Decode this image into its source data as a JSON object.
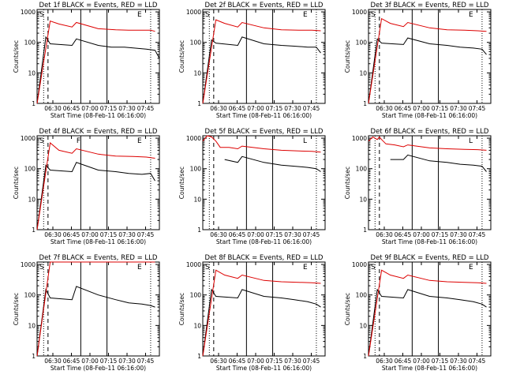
{
  "colors": {
    "events": "#000000",
    "lld": "#dd0000",
    "axis": "#000000",
    "background": "#ffffff"
  },
  "chart_data": [
    {
      "type": "line",
      "title": "Det 1f BLACK = Events, RED = LLD",
      "xlabel": "Start Time (08-Feb-11 06:16:00)",
      "ylabel": "Counts/sec",
      "yscale": "log",
      "ylim": [
        1,
        1200
      ],
      "x_ticks": [
        "06:30",
        "06:45",
        "07:00",
        "07:15",
        "07:30",
        "07:45"
      ],
      "y_ticks": [
        "1",
        "10",
        "100",
        "1000"
      ],
      "markers": [
        "S",
        "E"
      ],
      "series": [
        {
          "name": "Events",
          "values": [
            [
              6.0,
              1
            ],
            [
              6.02,
              150
            ],
            [
              6.03,
              90
            ],
            [
              6.08,
              80
            ],
            [
              6.09,
              130
            ],
            [
              6.14,
              80
            ],
            [
              6.17,
              70
            ],
            [
              6.2,
              70
            ],
            [
              6.25,
              60
            ],
            [
              6.27,
              55
            ],
            [
              6.28,
              30
            ]
          ]
        },
        {
          "name": "LLD",
          "values": [
            [
              6.0,
              1
            ],
            [
              6.03,
              500
            ],
            [
              6.05,
              400
            ],
            [
              6.08,
              320
            ],
            [
              6.09,
              450
            ],
            [
              6.14,
              280
            ],
            [
              6.18,
              260
            ],
            [
              6.21,
              250
            ],
            [
              6.24,
              250
            ],
            [
              6.26,
              250
            ],
            [
              6.27,
              230
            ]
          ]
        }
      ]
    },
    {
      "type": "line",
      "title": "Det 2f BLACK = Events, RED = LLD",
      "xlabel": "Start Time (08-Feb-11 06:16:00)",
      "ylabel": "Counts/sec",
      "yscale": "log",
      "ylim": [
        1,
        1200
      ],
      "x_ticks": [
        "06:30",
        "06:45",
        "07:00",
        "07:15",
        "07:30",
        "07:45"
      ],
      "y_ticks": [
        "1",
        "10",
        "100",
        "1000"
      ],
      "markers": [
        "S",
        "E"
      ],
      "series": [
        {
          "name": "Events",
          "values": [
            [
              6.0,
              1
            ],
            [
              6.02,
              120
            ],
            [
              6.03,
              95
            ],
            [
              6.08,
              80
            ],
            [
              6.09,
              150
            ],
            [
              6.14,
              90
            ],
            [
              6.18,
              80
            ],
            [
              6.21,
              75
            ],
            [
              6.24,
              70
            ],
            [
              6.26,
              70
            ],
            [
              6.27,
              45
            ]
          ]
        },
        {
          "name": "LLD",
          "values": [
            [
              6.0,
              1
            ],
            [
              6.03,
              550
            ],
            [
              6.05,
              420
            ],
            [
              6.08,
              320
            ],
            [
              6.09,
              450
            ],
            [
              6.14,
              300
            ],
            [
              6.18,
              260
            ],
            [
              6.22,
              250
            ],
            [
              6.25,
              250
            ],
            [
              6.27,
              240
            ]
          ]
        }
      ]
    },
    {
      "type": "line",
      "title": "Det 3f BLACK = Events, RED = LLD",
      "xlabel": "Start Time (08-Feb-11 06:16:00)",
      "ylabel": "Counts/sec",
      "yscale": "log",
      "ylim": [
        1,
        1200
      ],
      "x_ticks": [
        "06:30",
        "06:45",
        "07:00",
        "07:15",
        "07:30",
        "07:45"
      ],
      "y_ticks": [
        "1",
        "10",
        "100",
        "1000"
      ],
      "markers": [
        "S",
        "E"
      ],
      "series": [
        {
          "name": "Events",
          "values": [
            [
              6.0,
              1
            ],
            [
              6.02,
              130
            ],
            [
              6.03,
              95
            ],
            [
              6.08,
              85
            ],
            [
              6.09,
              140
            ],
            [
              6.14,
              90
            ],
            [
              6.18,
              80
            ],
            [
              6.21,
              70
            ],
            [
              6.24,
              65
            ],
            [
              6.26,
              60
            ],
            [
              6.27,
              40
            ]
          ]
        },
        {
          "name": "LLD",
          "values": [
            [
              6.0,
              1
            ],
            [
              6.03,
              600
            ],
            [
              6.05,
              420
            ],
            [
              6.08,
              330
            ],
            [
              6.09,
              450
            ],
            [
              6.14,
              300
            ],
            [
              6.18,
              260
            ],
            [
              6.22,
              250
            ],
            [
              6.25,
              240
            ],
            [
              6.27,
              230
            ]
          ]
        }
      ]
    },
    {
      "type": "line",
      "title": "Det 4f BLACK = Events, RED = LLD",
      "xlabel": "Start Time (08-Feb-11 06:16:00)",
      "ylabel": "Counts/sec",
      "yscale": "log",
      "ylim": [
        1,
        1200
      ],
      "x_ticks": [
        "06:30",
        "06:45",
        "07:00",
        "07:15",
        "07:30",
        "07:45"
      ],
      "y_ticks": [
        "1",
        "10",
        "100",
        "1000"
      ],
      "markers": [
        "S",
        "F",
        "E"
      ],
      "series": [
        {
          "name": "Events",
          "values": [
            [
              6.0,
              1
            ],
            [
              6.02,
              130
            ],
            [
              6.03,
              90
            ],
            [
              6.08,
              80
            ],
            [
              6.09,
              160
            ],
            [
              6.14,
              90
            ],
            [
              6.18,
              80
            ],
            [
              6.21,
              70
            ],
            [
              6.24,
              65
            ],
            [
              6.26,
              70
            ],
            [
              6.27,
              40
            ]
          ]
        },
        {
          "name": "LLD",
          "values": [
            [
              6.0,
              1
            ],
            [
              6.03,
              700
            ],
            [
              6.05,
              400
            ],
            [
              6.08,
              320
            ],
            [
              6.09,
              450
            ],
            [
              6.14,
              300
            ],
            [
              6.18,
              260
            ],
            [
              6.22,
              250
            ],
            [
              6.25,
              240
            ],
            [
              6.27,
              220
            ]
          ]
        }
      ]
    },
    {
      "type": "line",
      "title": "Det 5f BLACK = Events, RED = LLD",
      "xlabel": "Start Time (08-Feb-11 06:16:00)",
      "ylabel": "Counts/sec",
      "yscale": "log",
      "ylim": [
        1,
        1200
      ],
      "x_ticks": [
        "06:30",
        "06:45",
        "07:00",
        "07:15",
        "07:30",
        "07:45"
      ],
      "y_ticks": [
        "1",
        "10",
        "100",
        "1000"
      ],
      "markers": [
        "L"
      ],
      "series": [
        {
          "name": "Events",
          "values": [
            [
              6.05,
              200
            ],
            [
              6.08,
              160
            ],
            [
              6.09,
              250
            ],
            [
              6.14,
              160
            ],
            [
              6.18,
              130
            ],
            [
              6.21,
              120
            ],
            [
              6.24,
              110
            ],
            [
              6.26,
              100
            ],
            [
              6.27,
              80
            ]
          ]
        },
        {
          "name": "LLD",
          "values": [
            [
              6.0,
              800
            ],
            [
              6.01,
              1200
            ],
            [
              6.02,
              1100
            ],
            [
              6.03,
              800
            ],
            [
              6.04,
              500
            ],
            [
              6.06,
              500
            ],
            [
              6.08,
              450
            ],
            [
              6.09,
              550
            ],
            [
              6.14,
              450
            ],
            [
              6.18,
              400
            ],
            [
              6.22,
              380
            ],
            [
              6.25,
              370
            ],
            [
              6.27,
              350
            ]
          ]
        }
      ]
    },
    {
      "type": "line",
      "title": "Det 6f BLACK = Events, RED = LLD",
      "xlabel": "Start Time (08-Feb-11 06:16:00)",
      "ylabel": "Counts/sec",
      "yscale": "log",
      "ylim": [
        1,
        1200
      ],
      "x_ticks": [
        "06:30",
        "06:45",
        "07:00",
        "07:15",
        "07:30",
        "07:45"
      ],
      "y_ticks": [
        "1",
        "10",
        "100",
        "1000"
      ],
      "markers": [
        "L"
      ],
      "series": [
        {
          "name": "Events",
          "values": [
            [
              6.05,
              200
            ],
            [
              6.08,
              200
            ],
            [
              6.09,
              280
            ],
            [
              6.14,
              180
            ],
            [
              6.18,
              160
            ],
            [
              6.21,
              140
            ],
            [
              6.24,
              130
            ],
            [
              6.26,
              120
            ],
            [
              6.27,
              80
            ]
          ]
        },
        {
          "name": "LLD",
          "values": [
            [
              6.0,
              800
            ],
            [
              6.01,
              1100
            ],
            [
              6.02,
              900
            ],
            [
              6.025,
              1100
            ],
            [
              6.03,
              900
            ],
            [
              6.04,
              650
            ],
            [
              6.06,
              600
            ],
            [
              6.08,
              520
            ],
            [
              6.09,
              600
            ],
            [
              6.14,
              480
            ],
            [
              6.18,
              450
            ],
            [
              6.22,
              430
            ],
            [
              6.25,
              420
            ],
            [
              6.27,
              400
            ]
          ]
        }
      ]
    },
    {
      "type": "line",
      "title": "Det 7f BLACK = Events, RED = LLD",
      "xlabel": "Start Time (08-Feb-11 06:16:00)",
      "ylabel": "Counts/sec",
      "yscale": "log",
      "ylim": [
        1,
        1200
      ],
      "x_ticks": [
        "06:30",
        "06:45",
        "07:00",
        "07:15",
        "07:30",
        "07:45"
      ],
      "y_ticks": [
        "1",
        "10",
        "100",
        "1000"
      ],
      "markers": [
        "S",
        "E"
      ],
      "series": [
        {
          "name": "Events",
          "values": [
            [
              6.0,
              1
            ],
            [
              6.02,
              150
            ],
            [
              6.03,
              80
            ],
            [
              6.08,
              70
            ],
            [
              6.09,
              190
            ],
            [
              6.14,
              100
            ],
            [
              6.18,
              70
            ],
            [
              6.21,
              55
            ],
            [
              6.24,
              50
            ],
            [
              6.26,
              45
            ],
            [
              6.27,
              40
            ]
          ]
        },
        {
          "name": "LLD",
          "values": [
            [
              6.0,
              1
            ],
            [
              6.03,
              1200
            ],
            [
              6.27,
              1200
            ]
          ]
        }
      ]
    },
    {
      "type": "line",
      "title": "Det 8f BLACK = Events, RED = LLD",
      "xlabel": "Start Time (08-Feb-11 06:16:00)",
      "ylabel": "Counts/sec",
      "yscale": "log",
      "ylim": [
        1,
        1200
      ],
      "x_ticks": [
        "06:30",
        "06:45",
        "07:00",
        "07:15",
        "07:30",
        "07:45"
      ],
      "y_ticks": [
        "1",
        "10",
        "100",
        "1000"
      ],
      "markers": [
        "S",
        "E"
      ],
      "series": [
        {
          "name": "Events",
          "values": [
            [
              6.0,
              1
            ],
            [
              6.02,
              150
            ],
            [
              6.03,
              90
            ],
            [
              6.08,
              80
            ],
            [
              6.09,
              150
            ],
            [
              6.14,
              90
            ],
            [
              6.18,
              80
            ],
            [
              6.21,
              70
            ],
            [
              6.24,
              60
            ],
            [
              6.26,
              50
            ],
            [
              6.27,
              40
            ]
          ]
        },
        {
          "name": "LLD",
          "values": [
            [
              6.0,
              1
            ],
            [
              6.03,
              650
            ],
            [
              6.05,
              450
            ],
            [
              6.08,
              350
            ],
            [
              6.09,
              450
            ],
            [
              6.14,
              300
            ],
            [
              6.18,
              270
            ],
            [
              6.22,
              260
            ],
            [
              6.25,
              250
            ],
            [
              6.27,
              240
            ]
          ]
        }
      ]
    },
    {
      "type": "line",
      "title": "Det 9f BLACK = Events, RED = LLD",
      "xlabel": "Start Time (08-Feb-11 06:16:00)",
      "ylabel": "Counts/sec",
      "yscale": "log",
      "ylim": [
        1,
        1200
      ],
      "x_ticks": [
        "06:30",
        "06:45",
        "07:00",
        "07:15",
        "07:30",
        "07:45"
      ],
      "y_ticks": [
        "1",
        "10",
        "100",
        "1000"
      ],
      "markers": [
        "S",
        "E"
      ],
      "series": [
        {
          "name": "Events",
          "values": [
            [
              6.0,
              1
            ],
            [
              6.02,
              150
            ],
            [
              6.03,
              90
            ],
            [
              6.08,
              80
            ],
            [
              6.09,
              150
            ],
            [
              6.14,
              90
            ],
            [
              6.18,
              80
            ],
            [
              6.21,
              70
            ],
            [
              6.24,
              60
            ],
            [
              6.26,
              50
            ],
            [
              6.27,
              40
            ]
          ]
        },
        {
          "name": "LLD",
          "values": [
            [
              6.0,
              1
            ],
            [
              6.03,
              650
            ],
            [
              6.05,
              450
            ],
            [
              6.08,
              350
            ],
            [
              6.09,
              450
            ],
            [
              6.14,
              300
            ],
            [
              6.18,
              270
            ],
            [
              6.22,
              260
            ],
            [
              6.25,
              250
            ],
            [
              6.27,
              240
            ]
          ]
        }
      ]
    }
  ]
}
